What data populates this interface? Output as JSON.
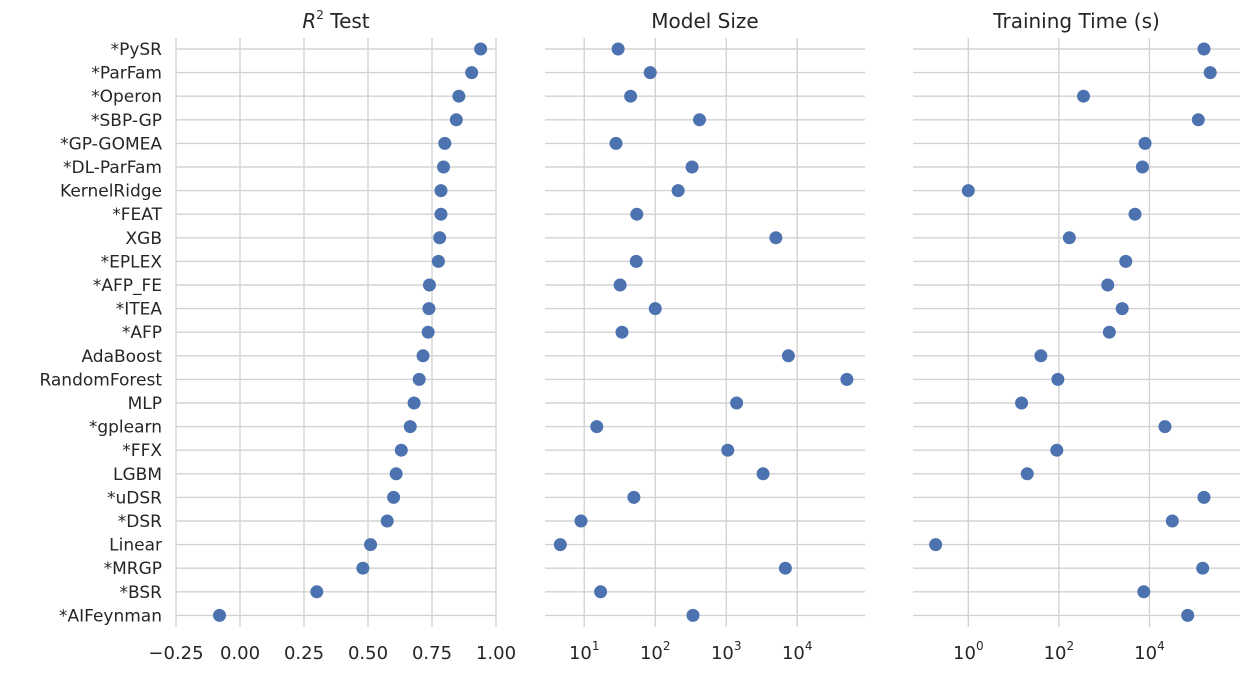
{
  "chart_data": {
    "type": "scatter",
    "layout": "three horizontal dot-plot panels sharing a categorical y-axis",
    "grid": true,
    "legend": "none",
    "marker_color": "#4c72b0",
    "grid_color": "#d3d3d3",
    "categories": [
      "*PySR",
      "*ParFam",
      "*Operon",
      "*SBP-GP",
      "*GP-GOMEA",
      "*DL-ParFam",
      "KernelRidge",
      "*FEAT",
      "XGB",
      "*EPLEX",
      "*AFP_FE",
      "*ITEA",
      "*AFP",
      "AdaBoost",
      "RandomForest",
      "MLP",
      "*gplearn",
      "*FFX",
      "LGBM",
      "*uDSR",
      "*DSR",
      "Linear",
      "*MRGP",
      "*BSR",
      "*AIFeynman"
    ],
    "panels": [
      {
        "title_italic": "R",
        "title_sup": "2",
        "title_rest": " Test",
        "scale": "linear",
        "xlim": [
          -0.25,
          1.0
        ],
        "ticks": [
          -0.25,
          0.0,
          0.25,
          0.5,
          0.75,
          1.0
        ],
        "tick_labels": [
          "−0.25",
          "0.00",
          "0.25",
          "0.50",
          "0.75",
          "1.00"
        ],
        "values": [
          0.94,
          0.905,
          0.855,
          0.845,
          0.8,
          0.795,
          0.785,
          0.785,
          0.78,
          0.775,
          0.74,
          0.738,
          0.735,
          0.715,
          0.7,
          0.68,
          0.665,
          0.63,
          0.61,
          0.6,
          0.575,
          0.51,
          0.48,
          0.3,
          -0.08
        ]
      },
      {
        "title": "Model Size",
        "scale": "log",
        "xlim": [
          2.8,
          90000
        ],
        "ticks": [
          10,
          100,
          1000,
          10000
        ],
        "tick_labels": [
          {
            "base": "10",
            "exp": "1"
          },
          {
            "base": "10",
            "exp": "2"
          },
          {
            "base": "10",
            "exp": "3"
          },
          {
            "base": "10",
            "exp": "4"
          }
        ],
        "values": [
          30,
          85,
          45,
          420,
          28,
          330,
          210,
          55,
          5000,
          54,
          32,
          100,
          34,
          7500,
          50000,
          1400,
          15,
          1050,
          3300,
          50,
          9,
          4.6,
          6800,
          17,
          340
        ]
      },
      {
        "title": "Training Time (s)",
        "scale": "log",
        "xlim": [
          0.06,
          1000000
        ],
        "ticks": [
          1,
          100,
          10000
        ],
        "tick_labels": [
          {
            "base": "10",
            "exp": "0"
          },
          {
            "base": "10",
            "exp": "2"
          },
          {
            "base": "10",
            "exp": "4"
          }
        ],
        "values": [
          160000,
          220000,
          350,
          120000,
          8000,
          7000,
          1,
          4800,
          170,
          3000,
          1200,
          2500,
          1300,
          40,
          95,
          15,
          22000,
          90,
          20,
          160000,
          32000,
          0.19,
          150000,
          7500,
          70000
        ]
      }
    ]
  }
}
